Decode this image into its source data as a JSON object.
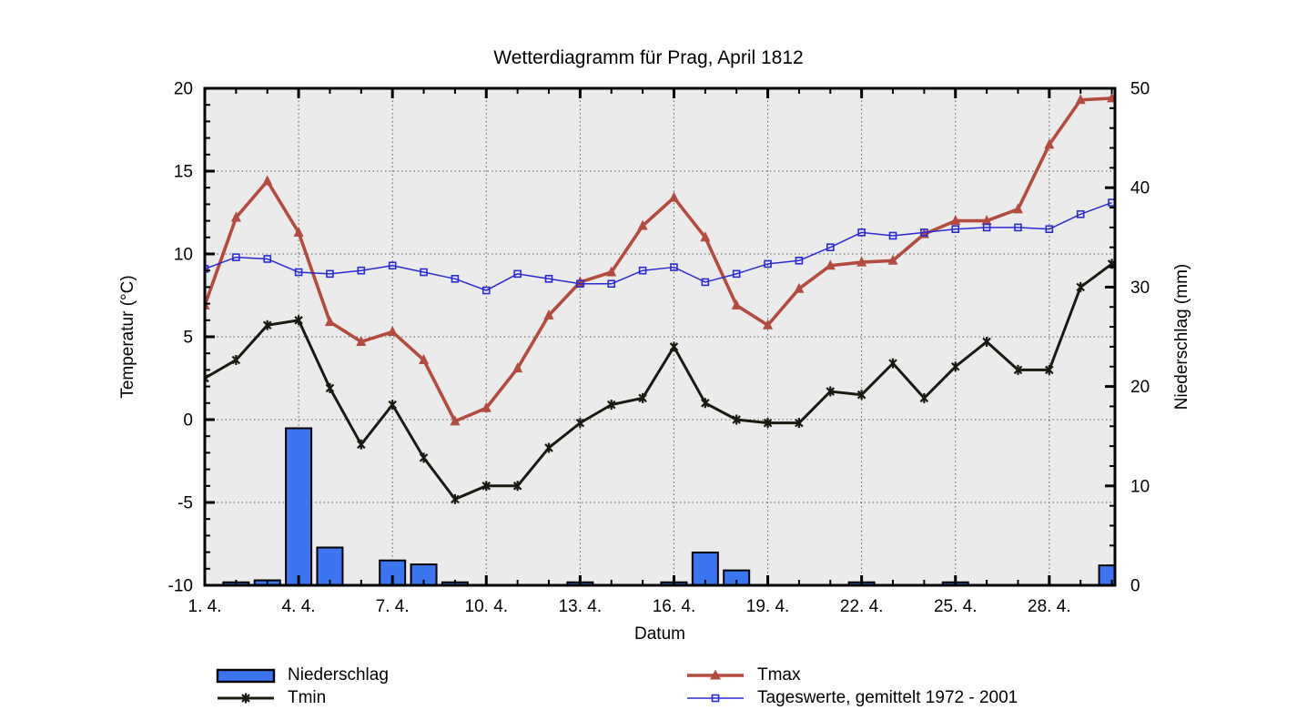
{
  "title": "Wetterdiagramm für Prag, April 1812",
  "colors": {
    "precip_fill": "#3B76F0",
    "precip_outline": "#000000",
    "tmin_line": "#1A1A12",
    "tmax_line": "#B54A3E",
    "avg_line": "#2A2AD5",
    "plot_bg": "#EBEBEB",
    "grid": "#5A5A5A",
    "axis": "#000000"
  },
  "chart_data": {
    "type": "mixed",
    "title": "Wetterdiagramm für Prag, April 1812",
    "xlabel": "Datum",
    "x": [
      1,
      2,
      3,
      4,
      5,
      6,
      7,
      8,
      9,
      10,
      11,
      12,
      13,
      14,
      15,
      16,
      17,
      18,
      19,
      20,
      21,
      22,
      23,
      24,
      25,
      26,
      27,
      28,
      29,
      30
    ],
    "x_range": [
      1,
      30.1
    ],
    "x_major_ticks": [
      1,
      4,
      7,
      10,
      13,
      16,
      19,
      22,
      25,
      28
    ],
    "x_tick_labels": [
      "1. 4.",
      "4. 4.",
      "7. 4.",
      "10. 4.",
      "13. 4.",
      "16. 4.",
      "19. 4.",
      "22. 4.",
      "25. 4.",
      "28. 4."
    ],
    "grid": "dotted",
    "legend_position": "below",
    "left_axis": {
      "label": "Temperatur (°C)",
      "range": [
        -10,
        20
      ],
      "major_step": 5,
      "minor_step": 1,
      "ticks": [
        -10,
        -5,
        0,
        5,
        10,
        15,
        20
      ]
    },
    "right_axis": {
      "label": "Niederschlag (mm)",
      "range": [
        0,
        50
      ],
      "major_step": 10,
      "minor_step": 2,
      "ticks": [
        0,
        10,
        20,
        30,
        40,
        50
      ]
    },
    "series": [
      {
        "name": "Niederschlag",
        "type": "bar",
        "axis": "right",
        "unit": "mm",
        "values": [
          0,
          0.3,
          0.5,
          15.8,
          3.8,
          0,
          2.5,
          2.1,
          0.3,
          0,
          0,
          0,
          0.3,
          0,
          0,
          0.3,
          3.3,
          1.5,
          0,
          0,
          0,
          0.3,
          0,
          0,
          0.3,
          0,
          0,
          0,
          0,
          2.0
        ]
      },
      {
        "name": "Tmin",
        "type": "line",
        "axis": "left",
        "marker": "x-star",
        "unit": "°C",
        "values": [
          2.5,
          3.6,
          5.7,
          6.0,
          1.9,
          -1.5,
          0.9,
          -2.3,
          -4.8,
          -4.0,
          -4.0,
          -1.7,
          -0.2,
          0.9,
          1.3,
          4.4,
          1.0,
          0.0,
          -0.2,
          -0.2,
          1.7,
          1.5,
          3.4,
          1.3,
          3.2,
          4.7,
          3.0,
          3.0,
          8.0,
          9.4
        ]
      },
      {
        "name": "Tmax",
        "type": "line",
        "axis": "left",
        "marker": "triangle",
        "unit": "°C",
        "values": [
          6.9,
          12.2,
          14.4,
          11.3,
          5.9,
          4.7,
          5.3,
          3.6,
          -0.1,
          0.7,
          3.1,
          6.3,
          8.3,
          8.9,
          11.7,
          13.4,
          11.0,
          6.9,
          5.7,
          7.9,
          9.3,
          9.5,
          9.6,
          11.2,
          12.0,
          12.0,
          12.7,
          16.6,
          19.3,
          19.4
        ]
      },
      {
        "name": "Tageswerte, gemittelt 1972 - 2001",
        "type": "line",
        "axis": "left",
        "marker": "open-square",
        "unit": "°C",
        "values": [
          9.1,
          9.8,
          9.7,
          8.9,
          8.8,
          9.0,
          9.3,
          8.9,
          8.5,
          7.8,
          8.8,
          8.5,
          8.2,
          8.2,
          9.0,
          9.2,
          8.3,
          8.8,
          9.4,
          9.6,
          10.4,
          11.3,
          11.1,
          11.3,
          11.5,
          11.6,
          11.6,
          11.5,
          12.4,
          13.1
        ]
      }
    ]
  }
}
